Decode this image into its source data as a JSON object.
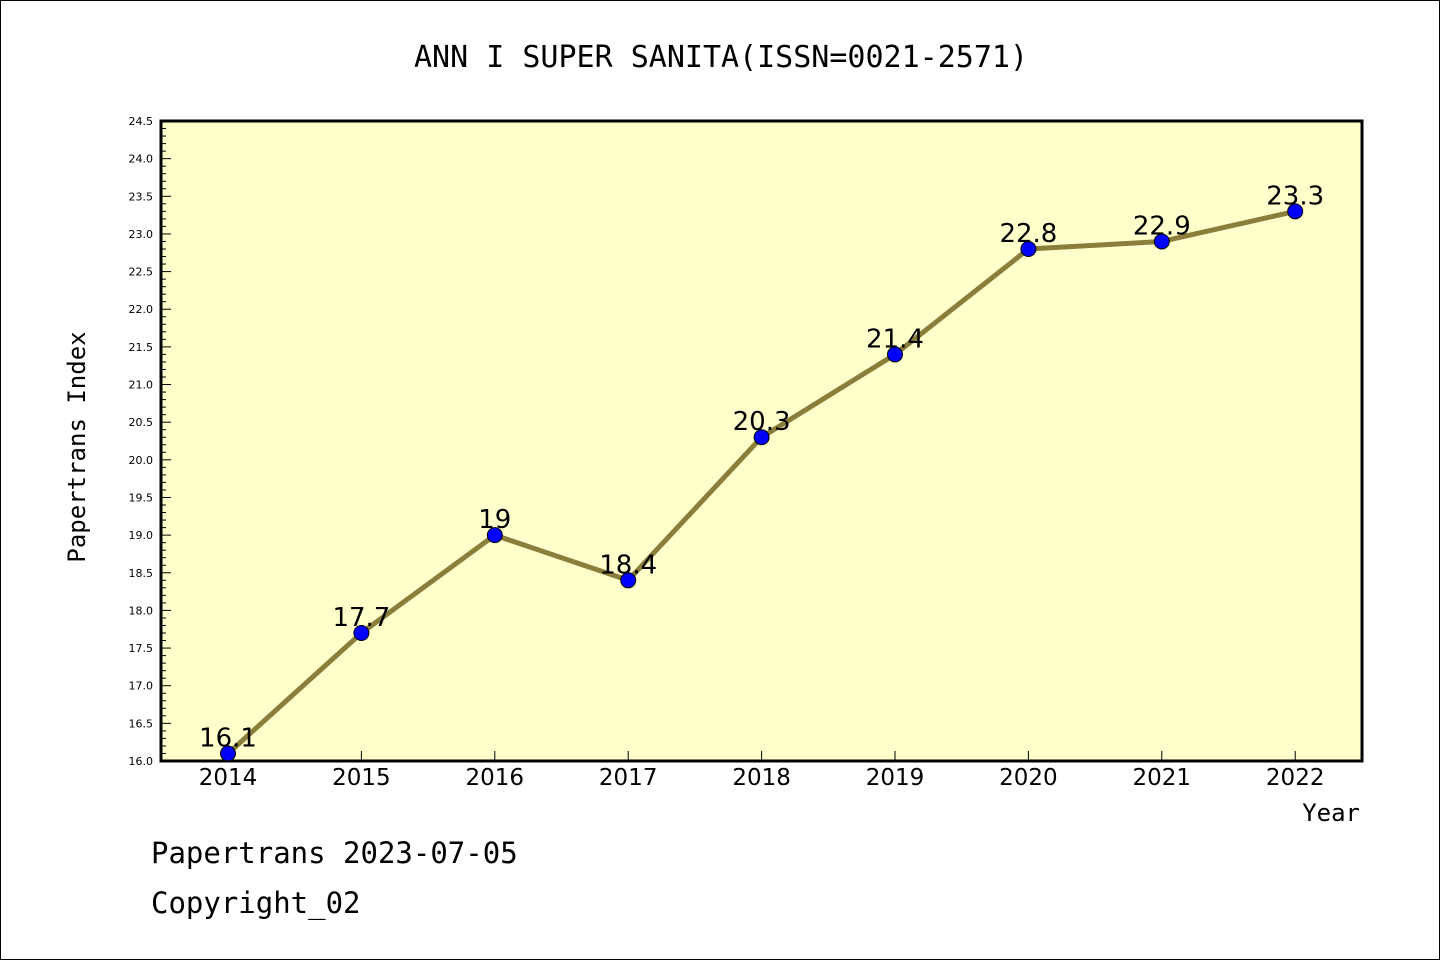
{
  "chart_data": {
    "type": "line",
    "title": "ANN I SUPER SANITA(ISSN=0021-2571)",
    "xlabel": "Year",
    "ylabel": "Papertrans Index",
    "categories": [
      "2014",
      "2015",
      "2016",
      "2017",
      "2018",
      "2019",
      "2020",
      "2021",
      "2022"
    ],
    "series": [
      {
        "values": [
          16.1,
          17.7,
          19,
          18.4,
          20.3,
          21.4,
          22.8,
          22.9,
          23.3
        ]
      }
    ],
    "data_labels": [
      "16.1",
      "17.7",
      "19",
      "18.4",
      "20.3",
      "21.4",
      "22.8",
      "22.9",
      "23.3"
    ],
    "ylim": [
      16.0,
      24.5
    ],
    "yticks": [
      "16.0",
      "16.5",
      "17.0",
      "17.5",
      "18.0",
      "18.5",
      "19.0",
      "19.5",
      "20.0",
      "20.5",
      "21.0",
      "21.5",
      "22.0",
      "22.5",
      "23.0",
      "23.5",
      "24.0",
      "24.5"
    ],
    "grid": false,
    "colors": {
      "plot_background": "#ffffcc",
      "line": "#8b7d3a",
      "marker": "#0000ff"
    }
  },
  "footer": {
    "date_line": "Papertrans 2023-07-05",
    "copyright": "Copyright_02"
  }
}
